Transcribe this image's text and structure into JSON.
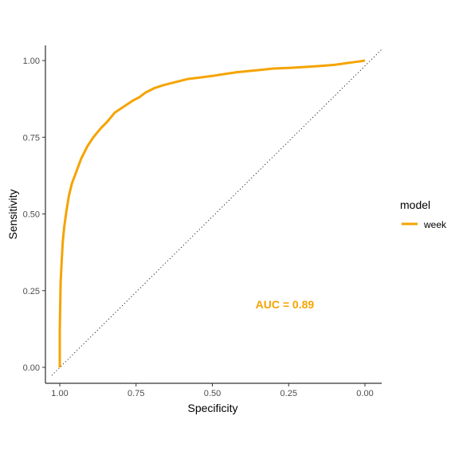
{
  "chart_data": {
    "type": "line",
    "title": "",
    "xlabel": "Specificity",
    "ylabel": "Sensitivity",
    "x_reversed": true,
    "xlim": [
      1.0,
      0.0
    ],
    "ylim": [
      0.0,
      1.0
    ],
    "x_ticks": [
      "1.00",
      "0.75",
      "0.50",
      "0.25",
      "0.00"
    ],
    "y_ticks": [
      "0.00",
      "0.25",
      "0.50",
      "0.75",
      "1.00"
    ],
    "grid": false,
    "legend": {
      "title": "model",
      "position": "right",
      "entries": [
        {
          "label": "week",
          "color": "#F5A300"
        }
      ]
    },
    "reference_line": {
      "style": "dotted",
      "from": [
        1.0,
        0.0
      ],
      "to": [
        0.0,
        1.0
      ],
      "color": "#000000"
    },
    "annotation": {
      "text": "AUC = 0.89",
      "x": 0.2,
      "y": 0.2,
      "color": "#F5A300"
    },
    "series": [
      {
        "name": "week",
        "color": "#F5A300",
        "x": [
          1.0,
          1.0,
          0.997,
          0.993,
          0.99,
          0.985,
          0.978,
          0.97,
          0.96,
          0.945,
          0.93,
          0.91,
          0.89,
          0.865,
          0.845,
          0.82,
          0.79,
          0.76,
          0.74,
          0.72,
          0.69,
          0.66,
          0.62,
          0.58,
          0.54,
          0.5,
          0.46,
          0.42,
          0.38,
          0.34,
          0.3,
          0.25,
          0.2,
          0.15,
          0.1,
          0.05,
          0.02,
          0.0
        ],
        "y": [
          0.0,
          0.12,
          0.28,
          0.36,
          0.41,
          0.46,
          0.51,
          0.56,
          0.6,
          0.64,
          0.68,
          0.72,
          0.75,
          0.78,
          0.8,
          0.83,
          0.85,
          0.87,
          0.88,
          0.895,
          0.91,
          0.92,
          0.93,
          0.94,
          0.945,
          0.95,
          0.956,
          0.962,
          0.966,
          0.97,
          0.974,
          0.976,
          0.979,
          0.982,
          0.986,
          0.993,
          0.997,
          1.0
        ]
      }
    ]
  }
}
